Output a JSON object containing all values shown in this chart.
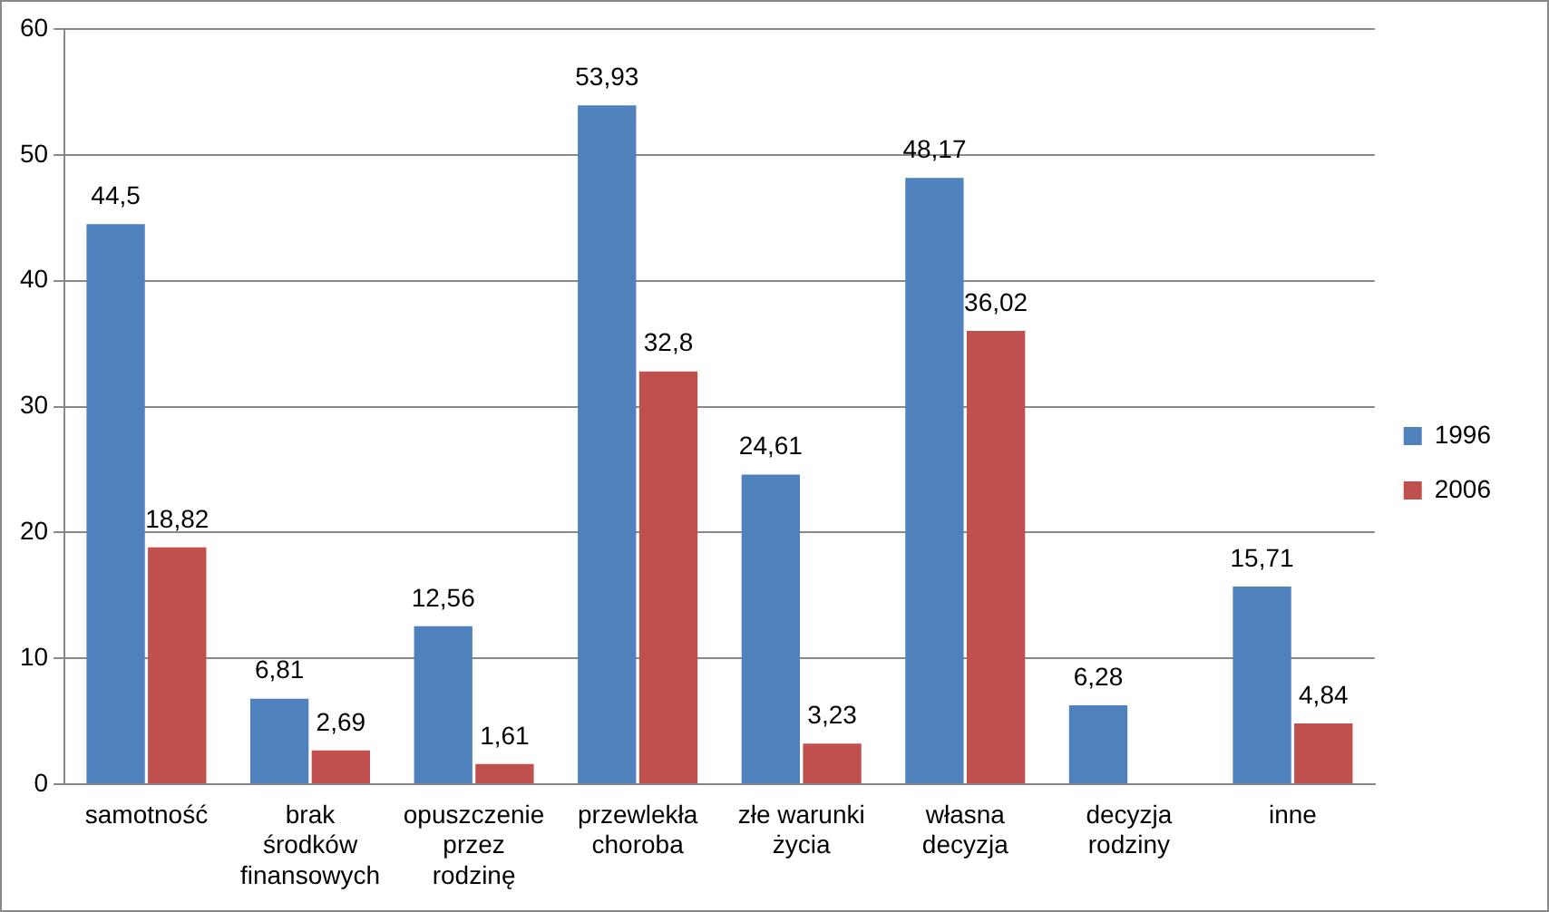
{
  "chart_data": {
    "type": "bar",
    "categories": [
      "samotność",
      "brak środków finansowych",
      "opuszczenie przez rodzinę",
      "przewlekła choroba",
      "złe warunki życia",
      "własna decyzja",
      "decyzja rodziny",
      "inne"
    ],
    "series": [
      {
        "name": "1996",
        "color": "#4f81bd",
        "values": [
          44.5,
          6.81,
          12.56,
          53.93,
          24.61,
          48.17,
          6.28,
          15.71
        ],
        "value_labels": [
          "44,5",
          "6,81",
          "12,56",
          "53,93",
          "24,61",
          "48,17",
          "6,28",
          "15,71"
        ]
      },
      {
        "name": "2006",
        "color": "#c0504d",
        "values": [
          18.82,
          2.69,
          1.61,
          32.8,
          3.23,
          36.02,
          null,
          4.84
        ],
        "value_labels": [
          "18,82",
          "2,69",
          "1,61",
          "32,8",
          "3,23",
          "36,02",
          null,
          "4,84"
        ]
      }
    ],
    "ylim": [
      0,
      60
    ],
    "yticks": [
      0,
      10,
      20,
      30,
      40,
      50,
      60
    ],
    "grid": "y",
    "legend": "right"
  }
}
